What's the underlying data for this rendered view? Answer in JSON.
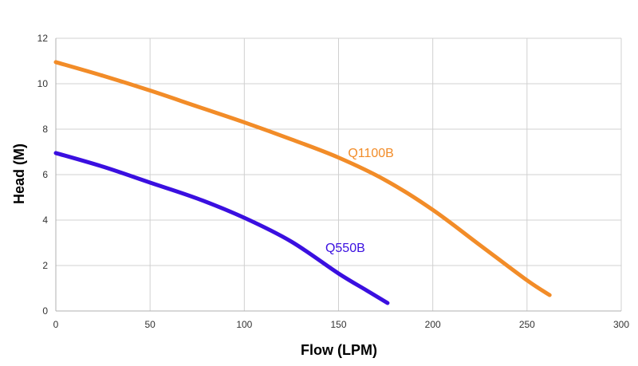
{
  "chart_data": {
    "type": "line",
    "title": "",
    "xlabel": "Flow (LPM)",
    "ylabel": "Head (M)",
    "xlim": [
      0,
      300
    ],
    "ylim": [
      0,
      12
    ],
    "xticks": [
      0,
      50,
      100,
      150,
      200,
      250,
      300
    ],
    "yticks": [
      0,
      2,
      4,
      6,
      8,
      10,
      12
    ],
    "grid": true,
    "legend": "inline labels",
    "series": [
      {
        "name": "Q1100B",
        "color": "#F28C28",
        "x": [
          0,
          25,
          50,
          75,
          100,
          125,
          150,
          175,
          200,
          225,
          250,
          262
        ],
        "y": [
          10.95,
          10.35,
          9.7,
          9.0,
          8.3,
          7.55,
          6.75,
          5.75,
          4.45,
          2.9,
          1.35,
          0.7
        ]
      },
      {
        "name": "Q550B",
        "color": "#3A0FE0",
        "x": [
          0,
          25,
          50,
          75,
          100,
          125,
          150,
          165,
          176
        ],
        "y": [
          6.95,
          6.35,
          5.65,
          4.95,
          4.1,
          3.05,
          1.65,
          0.9,
          0.35
        ]
      }
    ]
  }
}
